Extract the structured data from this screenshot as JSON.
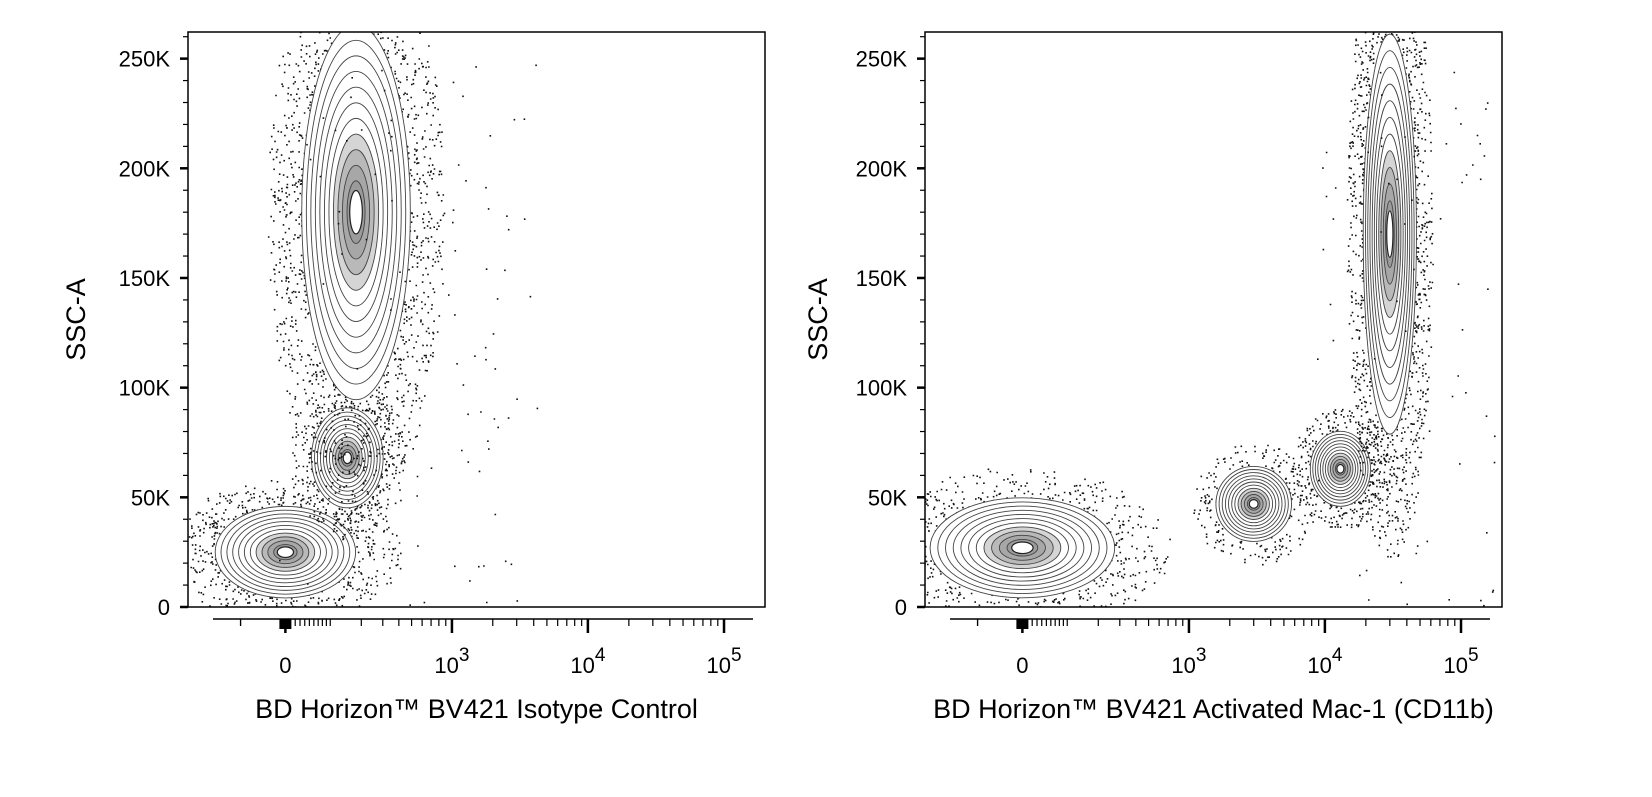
{
  "chart_data": [
    {
      "type": "scatter",
      "subtype": "flow-cytometry contour plot with outliers",
      "xlabel": "BD Horizon™ BV421 Isotype Control",
      "ylabel": "SSC-A",
      "xscale": "biexponential (logicle)",
      "xlim": [
        -300,
        200000
      ],
      "ylim": [
        0,
        262144
      ],
      "x_ticks": [
        {
          "value": 0,
          "label": "0"
        },
        {
          "value": 1000,
          "label": "10",
          "exp": "3"
        },
        {
          "value": 10000,
          "label": "10",
          "exp": "4"
        },
        {
          "value": 100000,
          "label": "10",
          "exp": "5"
        }
      ],
      "y_ticks": [
        {
          "value": 0,
          "label": "0"
        },
        {
          "value": 50000,
          "label": "50K"
        },
        {
          "value": 100000,
          "label": "100K"
        },
        {
          "value": 150000,
          "label": "150K"
        },
        {
          "value": 200000,
          "label": "200K"
        },
        {
          "value": 250000,
          "label": "250K"
        }
      ],
      "populations": [
        {
          "x_center": 0,
          "y_center": 25000,
          "x_spread": 80,
          "y_spread": 11000,
          "relative_size": 0.25
        },
        {
          "x_center": 150,
          "y_center": 68000,
          "x_spread": 70,
          "y_spread": 12000,
          "relative_size": 0.12
        },
        {
          "x_center": 180,
          "y_center": 180000,
          "x_spread": 130,
          "y_spread": 45000,
          "relative_size": 0.63
        }
      ]
    },
    {
      "type": "scatter",
      "subtype": "flow-cytometry contour plot with outliers",
      "xlabel": "BD Horizon™ BV421 Activated Mac-1 (CD11b)",
      "ylabel": "SSC-A",
      "xscale": "biexponential (logicle)",
      "xlim": [
        -300,
        200000
      ],
      "ylim": [
        0,
        262144
      ],
      "x_ticks": [
        {
          "value": 0,
          "label": "0"
        },
        {
          "value": 1000,
          "label": "10",
          "exp": "3"
        },
        {
          "value": 10000,
          "label": "10",
          "exp": "4"
        },
        {
          "value": 100000,
          "label": "10",
          "exp": "5"
        }
      ],
      "y_ticks": [
        {
          "value": 0,
          "label": "0"
        },
        {
          "value": 50000,
          "label": "50K"
        },
        {
          "value": 100000,
          "label": "100K"
        },
        {
          "value": 150000,
          "label": "150K"
        },
        {
          "value": 200000,
          "label": "200K"
        },
        {
          "value": 250000,
          "label": "250K"
        }
      ],
      "populations": [
        {
          "x_center": 0,
          "y_center": 27000,
          "x_spread": 110,
          "y_spread": 12000,
          "relative_size": 0.25
        },
        {
          "x_center": 3000,
          "y_center": 47000,
          "x_spread": 1200,
          "y_spread": 9000,
          "relative_size": 0.1
        },
        {
          "x_center": 13000,
          "y_center": 63000,
          "x_spread": 4000,
          "y_spread": 9000,
          "relative_size": 0.12
        },
        {
          "x_center": 30000,
          "y_center": 170000,
          "x_spread": 8000,
          "y_spread": 48000,
          "relative_size": 0.53
        }
      ]
    }
  ]
}
